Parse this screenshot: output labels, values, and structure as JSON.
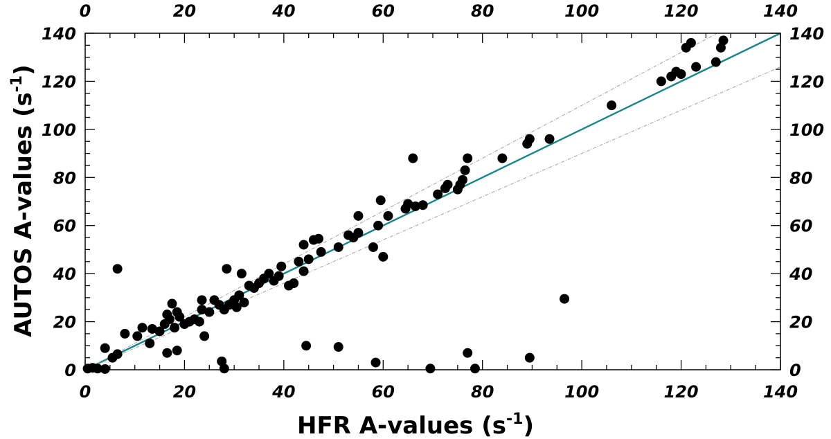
{
  "chart_data": {
    "type": "scatter",
    "title": "",
    "xlabel": "HFR A-values (s",
    "xlabel_sup": "-1",
    "xlabel_end": ")",
    "ylabel": "AUTOS A-values (s",
    "ylabel_sup": "-1",
    "ylabel_end": ")",
    "xlim": [
      0,
      140
    ],
    "ylim": [
      0,
      140
    ],
    "x_ticks": [
      "0",
      "20",
      "40",
      "60",
      "80",
      "100",
      "120",
      "140"
    ],
    "y_ticks": [
      "0",
      "20",
      "40",
      "60",
      "80",
      "100",
      "120",
      "140"
    ],
    "x_tick_values": [
      0,
      20,
      40,
      60,
      80,
      100,
      120,
      140
    ],
    "y_tick_values": [
      0,
      20,
      40,
      60,
      80,
      100,
      120,
      140
    ],
    "lines": [
      {
        "name": "y = x",
        "slope": 1.0,
        "color": "#17858a",
        "style": "solid"
      },
      {
        "name": "+10%",
        "slope": 1.1,
        "color": "#a9a9a9",
        "style": "dashdot"
      },
      {
        "name": "-10%",
        "slope": 0.9,
        "color": "#a9a9a9",
        "style": "dashdot"
      }
    ],
    "points": [
      [
        0.5,
        0.5
      ],
      [
        1.5,
        0.8
      ],
      [
        2.5,
        0.5
      ],
      [
        4,
        0.3
      ],
      [
        4,
        9
      ],
      [
        5.5,
        5
      ],
      [
        6.5,
        6.5
      ],
      [
        6.5,
        42
      ],
      [
        8,
        15
      ],
      [
        10.5,
        14
      ],
      [
        11.5,
        17.5
      ],
      [
        13,
        11
      ],
      [
        13.5,
        17
      ],
      [
        15,
        16
      ],
      [
        16,
        19
      ],
      [
        16.5,
        7
      ],
      [
        16.5,
        23
      ],
      [
        17,
        21
      ],
      [
        17.5,
        27.5
      ],
      [
        18,
        17.5
      ],
      [
        18.5,
        8
      ],
      [
        18.5,
        24
      ],
      [
        19,
        22
      ],
      [
        20,
        19
      ],
      [
        21,
        20
      ],
      [
        22,
        21
      ],
      [
        23,
        20
      ],
      [
        23.5,
        25
      ],
      [
        23.5,
        29
      ],
      [
        24,
        14
      ],
      [
        25,
        24
      ],
      [
        26,
        29
      ],
      [
        27,
        27
      ],
      [
        27.5,
        3.5
      ],
      [
        28,
        25
      ],
      [
        28,
        0.5
      ],
      [
        28.5,
        42
      ],
      [
        29,
        27
      ],
      [
        30,
        29
      ],
      [
        30.5,
        26
      ],
      [
        31,
        31
      ],
      [
        31.5,
        40
      ],
      [
        32,
        28
      ],
      [
        33,
        35
      ],
      [
        34,
        34
      ],
      [
        35,
        36
      ],
      [
        36,
        38
      ],
      [
        37,
        40
      ],
      [
        38,
        37
      ],
      [
        39,
        39
      ],
      [
        39.5,
        43
      ],
      [
        41,
        35
      ],
      [
        42,
        36
      ],
      [
        43,
        45
      ],
      [
        44,
        41
      ],
      [
        44,
        52
      ],
      [
        44.5,
        10
      ],
      [
        45,
        46
      ],
      [
        46,
        54
      ],
      [
        47,
        54.5
      ],
      [
        47.5,
        49
      ],
      [
        51,
        51
      ],
      [
        51,
        9.5
      ],
      [
        53,
        56
      ],
      [
        54,
        55
      ],
      [
        55,
        57
      ],
      [
        55,
        64
      ],
      [
        58,
        51
      ],
      [
        58.5,
        3
      ],
      [
        59,
        60
      ],
      [
        59.5,
        70.5
      ],
      [
        60,
        47
      ],
      [
        61,
        64
      ],
      [
        64.5,
        67
      ],
      [
        65,
        69
      ],
      [
        66,
        88
      ],
      [
        66.5,
        68
      ],
      [
        68,
        68.5
      ],
      [
        69.5,
        0.5
      ],
      [
        71,
        73
      ],
      [
        72.5,
        75.5
      ],
      [
        73,
        77
      ],
      [
        75,
        75
      ],
      [
        75.5,
        77
      ],
      [
        76,
        79
      ],
      [
        76.5,
        83
      ],
      [
        77,
        88
      ],
      [
        77,
        7
      ],
      [
        78.5,
        0.5
      ],
      [
        84,
        88
      ],
      [
        89,
        94
      ],
      [
        89.5,
        96
      ],
      [
        89.5,
        5
      ],
      [
        93.5,
        96
      ],
      [
        96.5,
        29.5
      ],
      [
        106,
        110
      ],
      [
        116,
        120
      ],
      [
        118,
        122
      ],
      [
        119,
        124
      ],
      [
        120,
        123
      ],
      [
        121,
        134
      ],
      [
        122,
        136
      ],
      [
        123,
        126
      ],
      [
        127,
        128
      ],
      [
        128,
        134
      ],
      [
        128.5,
        137
      ]
    ]
  }
}
